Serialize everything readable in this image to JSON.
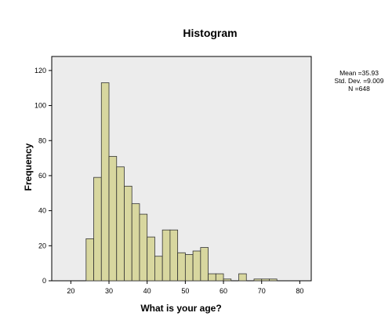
{
  "chart_data": {
    "type": "bar",
    "subtype": "histogram",
    "title": "Histogram",
    "xlabel": "What is your age?",
    "ylabel": "Frequency",
    "xlim": [
      15,
      83
    ],
    "ylim": [
      0,
      128
    ],
    "xticks": [
      20,
      30,
      40,
      50,
      60,
      70,
      80
    ],
    "yticks": [
      0,
      20,
      40,
      60,
      80,
      100,
      120
    ],
    "grid": false,
    "bar_color": "#d8d79f",
    "bar_edge_color": "#333333",
    "plot_background": "#ececec",
    "bins": [
      {
        "x0": 24,
        "x1": 26,
        "value": 24
      },
      {
        "x0": 26,
        "x1": 28,
        "value": 59
      },
      {
        "x0": 28,
        "x1": 30,
        "value": 113
      },
      {
        "x0": 30,
        "x1": 32,
        "value": 71
      },
      {
        "x0": 32,
        "x1": 34,
        "value": 65
      },
      {
        "x0": 34,
        "x1": 36,
        "value": 54
      },
      {
        "x0": 36,
        "x1": 38,
        "value": 44
      },
      {
        "x0": 38,
        "x1": 40,
        "value": 38
      },
      {
        "x0": 40,
        "x1": 42,
        "value": 25
      },
      {
        "x0": 42,
        "x1": 44,
        "value": 14
      },
      {
        "x0": 44,
        "x1": 46,
        "value": 29
      },
      {
        "x0": 46,
        "x1": 48,
        "value": 29
      },
      {
        "x0": 48,
        "x1": 50,
        "value": 16
      },
      {
        "x0": 50,
        "x1": 52,
        "value": 15
      },
      {
        "x0": 52,
        "x1": 54,
        "value": 17
      },
      {
        "x0": 54,
        "x1": 56,
        "value": 19
      },
      {
        "x0": 56,
        "x1": 58,
        "value": 4
      },
      {
        "x0": 58,
        "x1": 60,
        "value": 4
      },
      {
        "x0": 60,
        "x1": 62,
        "value": 1
      },
      {
        "x0": 64,
        "x1": 66,
        "value": 4
      },
      {
        "x0": 68,
        "x1": 70,
        "value": 1
      },
      {
        "x0": 70,
        "x1": 72,
        "value": 1
      },
      {
        "x0": 72,
        "x1": 74,
        "value": 1
      }
    ],
    "stats": {
      "mean": "Mean =35.93",
      "std_dev": "Std. Dev. =9.009",
      "n": "N =648"
    }
  }
}
